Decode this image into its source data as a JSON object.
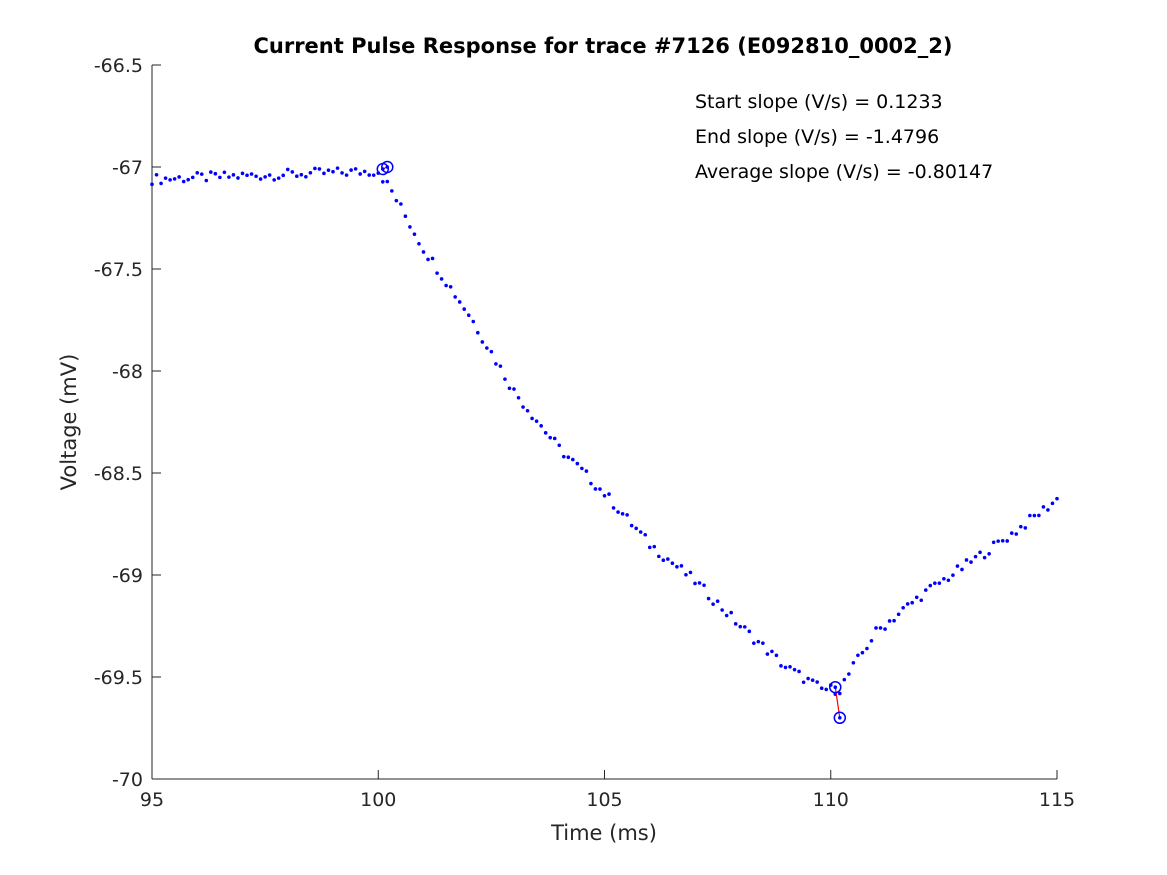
{
  "chart_data": {
    "type": "scatter",
    "title": "Current Pulse Response for trace #7126 (E092810_0002_2)",
    "xlabel": "Time (ms)",
    "ylabel": "Voltage (mV)",
    "xlim": [
      95,
      115
    ],
    "ylim": [
      -70,
      -66.5
    ],
    "xticks": [
      95,
      100,
      105,
      110,
      115
    ],
    "xtick_labels": [
      "95",
      "100",
      "105",
      "110",
      "115"
    ],
    "yticks": [
      -70,
      -69.5,
      -69,
      -68.5,
      -68,
      -67.5,
      -67,
      -66.5
    ],
    "ytick_labels": [
      "-70",
      "-69.5",
      "-69",
      "-68.5",
      "-68",
      "-67.5",
      "-67",
      "-66.5"
    ],
    "grid": false,
    "annotations": [
      "Start slope (V/s) = 0.1233",
      "End slope (V/s) = -1.4796",
      "Average slope (V/s) = -0.80147"
    ],
    "colors": {
      "points": "#0000ff",
      "markers": "#0000ff",
      "slope_line": "#ff0000"
    },
    "anchors": [
      [
        95,
        -67.06
      ],
      [
        100,
        -67.02
      ],
      [
        100.3,
        -67.12
      ],
      [
        101,
        -67.4
      ],
      [
        102,
        -67.72
      ],
      [
        103,
        -68.1
      ],
      [
        104,
        -68.38
      ],
      [
        105,
        -68.6
      ],
      [
        106,
        -68.85
      ],
      [
        107,
        -69.03
      ],
      [
        108,
        -69.25
      ],
      [
        109,
        -69.45
      ],
      [
        109.8,
        -69.56
      ],
      [
        110.2,
        -69.56
      ],
      [
        110.5,
        -69.45
      ],
      [
        111,
        -69.28
      ],
      [
        112,
        -69.1
      ],
      [
        113,
        -68.95
      ],
      [
        114,
        -68.8
      ],
      [
        115,
        -68.63
      ]
    ],
    "circle_markers": [
      [
        100.1,
        -67.01
      ],
      [
        100.2,
        -67.0
      ],
      [
        110.1,
        -69.55
      ],
      [
        110.2,
        -69.7
      ]
    ],
    "slope_segments": [
      [
        [
          100.1,
          -67.01
        ],
        [
          100.2,
          -67.0
        ]
      ],
      [
        [
          110.1,
          -69.55
        ],
        [
          110.2,
          -69.7
        ]
      ]
    ]
  }
}
